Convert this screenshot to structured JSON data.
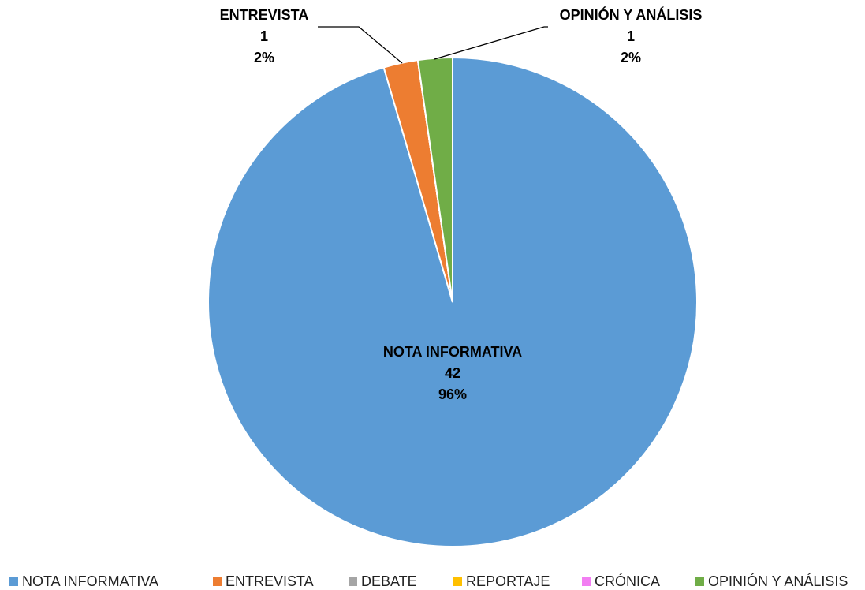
{
  "chart_data": {
    "type": "pie",
    "categories": [
      "NOTA INFORMATIVA",
      "ENTREVISTA",
      "DEBATE",
      "REPORTAJE",
      "CRÓNICA",
      "OPINIÓN Y ANÁLISIS"
    ],
    "values": [
      42,
      1,
      0,
      0,
      0,
      1
    ],
    "percent_labels": [
      "96%",
      "2%",
      null,
      null,
      null,
      "2%"
    ],
    "colors": [
      "#5b9bd5",
      "#ed7d31",
      "#a5a5a5",
      "#ffc000",
      "#f27ef2",
      "#70ad47"
    ],
    "legend": "bottom"
  }
}
